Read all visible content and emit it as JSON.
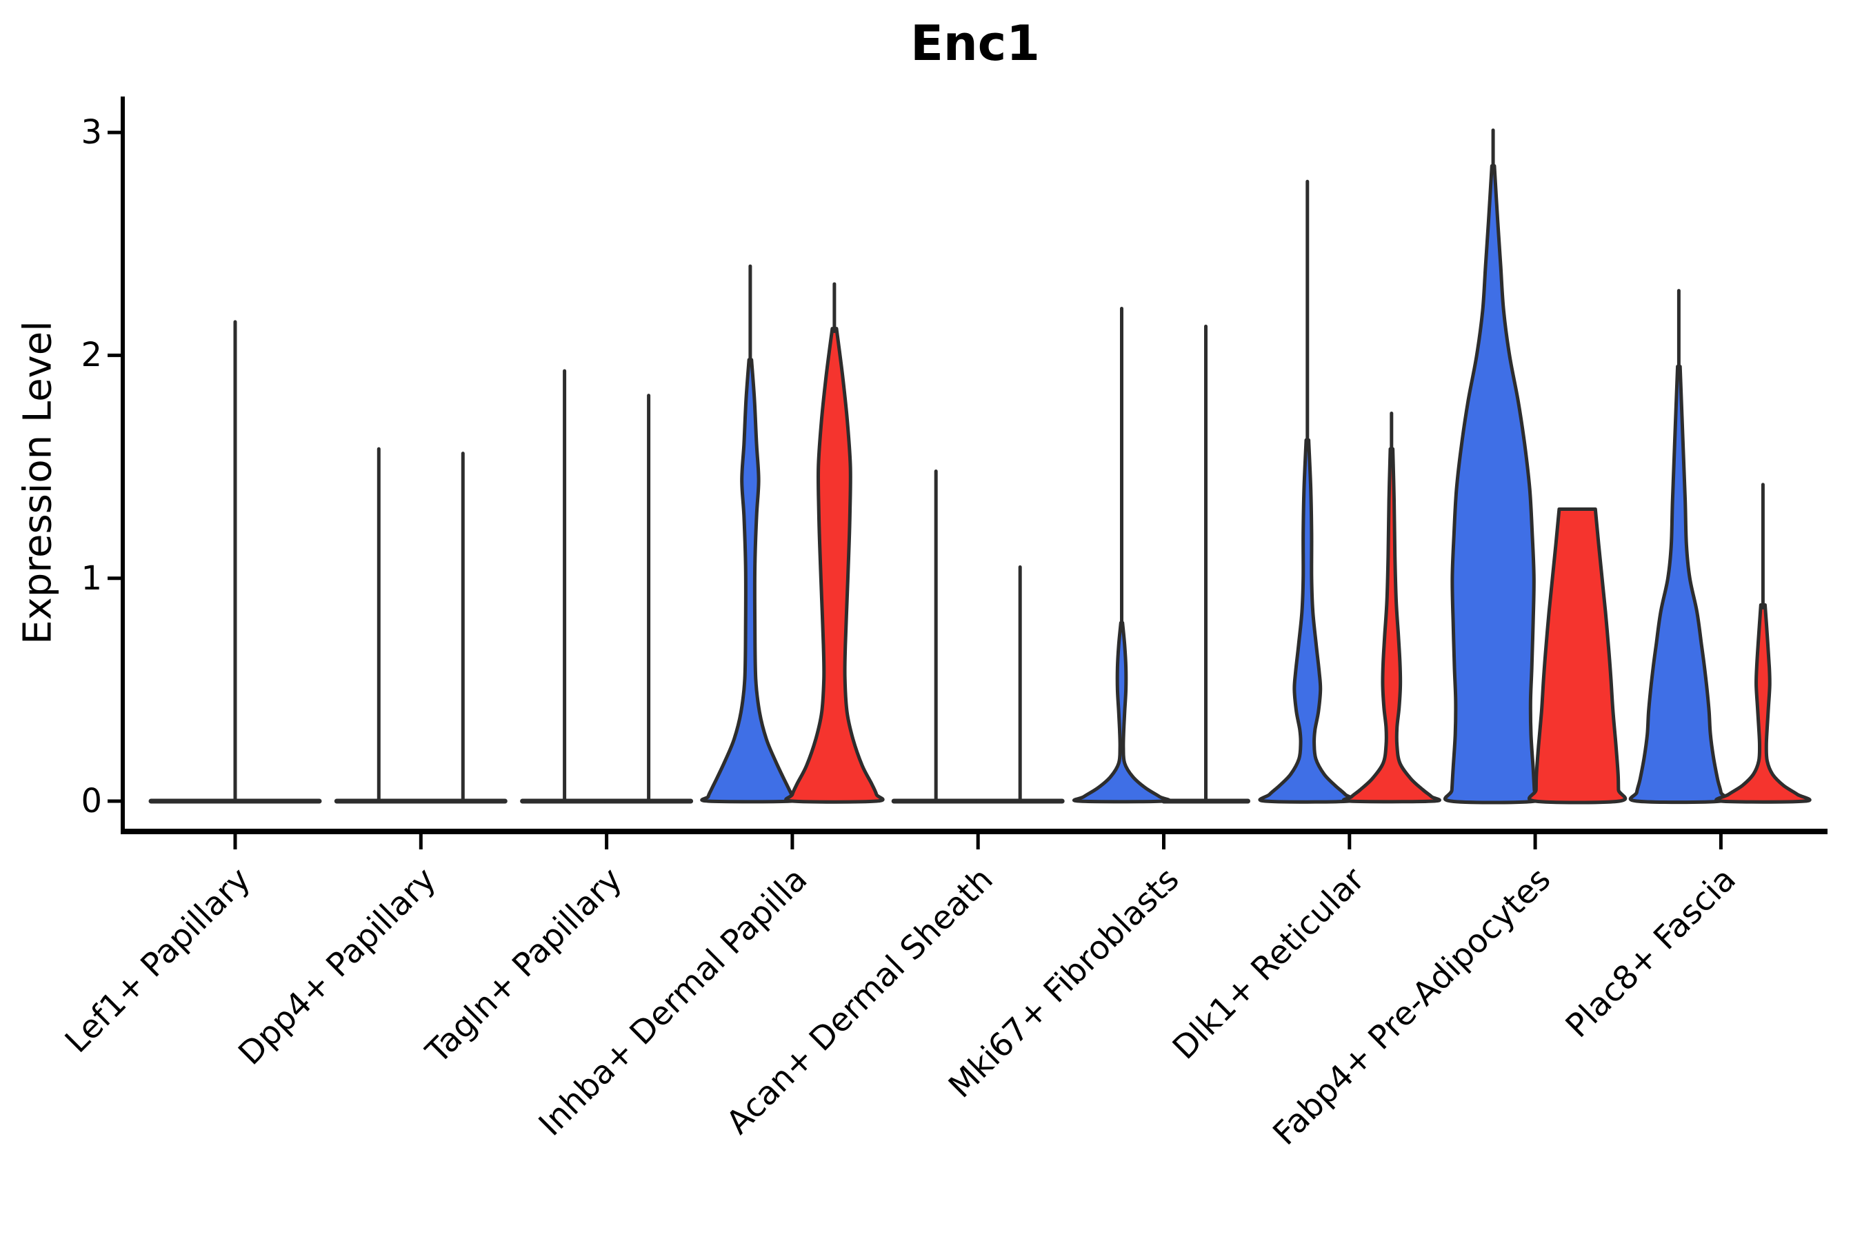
{
  "chart_data": {
    "type": "violin",
    "title": "Enc1",
    "ylabel": "Expression Level",
    "xlabel": "",
    "yticks": [
      0,
      1,
      2,
      3
    ],
    "ylim": [
      0,
      3.16
    ],
    "grid": false,
    "legend": "none",
    "split_colors": {
      "blue": "#3F6FE6",
      "red": "#F5342E"
    },
    "outline_color": "#2D2D2D",
    "axis_color": "#000000",
    "categories": [
      {
        "label": "Lef1+ Papillary",
        "violins": [
          {
            "pos": "center",
            "color": "blue",
            "flat": true,
            "spike": 2.15,
            "max_value": 2.15
          }
        ]
      },
      {
        "label": "Dpp4+ Papillary",
        "violins": [
          {
            "pos": "left",
            "color": "blue",
            "flat": true,
            "spike": 1.58,
            "max_value": 1.58
          },
          {
            "pos": "right",
            "color": "red",
            "flat": true,
            "spike": 1.56,
            "max_value": 1.56
          }
        ]
      },
      {
        "label": "Tagln+ Papillary",
        "violins": [
          {
            "pos": "left",
            "color": "blue",
            "flat": true,
            "spike": 1.93,
            "max_value": 1.93
          },
          {
            "pos": "right",
            "color": "red",
            "flat": true,
            "spike": 1.82,
            "max_value": 1.82
          }
        ]
      },
      {
        "label": "Inhba+ Dermal Papilla",
        "violins": [
          {
            "pos": "left",
            "color": "blue",
            "flat": false,
            "spike": 2.4,
            "max_value": 2.4,
            "profile": [
              [
                1.98,
                0.03
              ],
              [
                1.8,
                0.1
              ],
              [
                1.6,
                0.15
              ],
              [
                1.44,
                0.2
              ],
              [
                1.28,
                0.15
              ],
              [
                1.05,
                0.11
              ],
              [
                0.8,
                0.11
              ],
              [
                0.55,
                0.13
              ],
              [
                0.4,
                0.22
              ],
              [
                0.28,
                0.38
              ],
              [
                0.18,
                0.6
              ],
              [
                0.1,
                0.8
              ],
              [
                0.05,
                0.93
              ],
              [
                0.02,
                1.0
              ],
              [
                0,
                1.0
              ]
            ]
          },
          {
            "pos": "right",
            "color": "red",
            "flat": false,
            "spike": 2.32,
            "max_value": 2.32,
            "profile": [
              [
                2.12,
                0.05
              ],
              [
                1.9,
                0.2
              ],
              [
                1.7,
                0.31
              ],
              [
                1.5,
                0.38
              ],
              [
                1.3,
                0.37
              ],
              [
                1.1,
                0.34
              ],
              [
                0.9,
                0.3
              ],
              [
                0.7,
                0.26
              ],
              [
                0.55,
                0.25
              ],
              [
                0.4,
                0.3
              ],
              [
                0.28,
                0.44
              ],
              [
                0.16,
                0.66
              ],
              [
                0.08,
                0.88
              ],
              [
                0.03,
                1.0
              ],
              [
                0,
                1.0
              ]
            ]
          }
        ]
      },
      {
        "label": "Acan+ Dermal Sheath",
        "violins": [
          {
            "pos": "left",
            "color": "blue",
            "flat": true,
            "spike": 1.48,
            "max_value": 1.48
          },
          {
            "pos": "right",
            "color": "red",
            "flat": true,
            "spike": 1.05,
            "max_value": 1.05
          }
        ]
      },
      {
        "label": "Mki67+ Fibroblasts",
        "violins": [
          {
            "pos": "left",
            "color": "blue",
            "flat": false,
            "spike": 2.21,
            "max_value": 2.21,
            "profile": [
              [
                0.8,
                0.02
              ],
              [
                0.7,
                0.07
              ],
              [
                0.6,
                0.1
              ],
              [
                0.5,
                0.1
              ],
              [
                0.4,
                0.07
              ],
              [
                0.32,
                0.05
              ],
              [
                0.24,
                0.04
              ],
              [
                0.17,
                0.07
              ],
              [
                0.11,
                0.26
              ],
              [
                0.06,
                0.56
              ],
              [
                0.02,
                0.9
              ],
              [
                0,
                1.0
              ]
            ]
          },
          {
            "pos": "right",
            "color": "red",
            "flat": true,
            "spike": 2.13,
            "max_value": 2.13
          }
        ]
      },
      {
        "label": "Dlk1+ Reticular",
        "violins": [
          {
            "pos": "left",
            "color": "blue",
            "flat": false,
            "spike": 2.78,
            "max_value": 2.78,
            "profile": [
              [
                1.62,
                0.03
              ],
              [
                1.4,
                0.08
              ],
              [
                1.2,
                0.1
              ],
              [
                1.0,
                0.1
              ],
              [
                0.85,
                0.13
              ],
              [
                0.7,
                0.21
              ],
              [
                0.58,
                0.28
              ],
              [
                0.5,
                0.31
              ],
              [
                0.4,
                0.26
              ],
              [
                0.32,
                0.18
              ],
              [
                0.26,
                0.16
              ],
              [
                0.19,
                0.2
              ],
              [
                0.12,
                0.4
              ],
              [
                0.07,
                0.66
              ],
              [
                0.03,
                0.9
              ],
              [
                0,
                1.0
              ]
            ]
          },
          {
            "pos": "right",
            "color": "red",
            "flat": false,
            "spike": 1.74,
            "max_value": 1.74,
            "profile": [
              [
                1.58,
                0.03
              ],
              [
                1.35,
                0.06
              ],
              [
                1.1,
                0.08
              ],
              [
                0.9,
                0.11
              ],
              [
                0.75,
                0.16
              ],
              [
                0.62,
                0.2
              ],
              [
                0.52,
                0.21
              ],
              [
                0.42,
                0.18
              ],
              [
                0.33,
                0.13
              ],
              [
                0.25,
                0.13
              ],
              [
                0.17,
                0.2
              ],
              [
                0.1,
                0.46
              ],
              [
                0.05,
                0.75
              ],
              [
                0.02,
                0.95
              ],
              [
                0,
                1.0
              ]
            ]
          }
        ]
      },
      {
        "label": "Fabp4+ Pre-Adipocytes",
        "violins": [
          {
            "pos": "left",
            "color": "blue",
            "flat": false,
            "spike": 3.01,
            "max_value": 3.01,
            "profile": [
              [
                2.85,
                0.03
              ],
              [
                2.6,
                0.11
              ],
              [
                2.4,
                0.18
              ],
              [
                2.2,
                0.25
              ],
              [
                2.0,
                0.39
              ],
              [
                1.8,
                0.59
              ],
              [
                1.6,
                0.75
              ],
              [
                1.4,
                0.87
              ],
              [
                1.2,
                0.93
              ],
              [
                1.0,
                0.97
              ],
              [
                0.8,
                0.95
              ],
              [
                0.6,
                0.92
              ],
              [
                0.45,
                0.89
              ],
              [
                0.3,
                0.9
              ],
              [
                0.15,
                0.95
              ],
              [
                0.05,
                0.98
              ],
              [
                0,
                1.0
              ]
            ]
          },
          {
            "pos": "right",
            "color": "red",
            "flat": false,
            "spike": null,
            "max_value": 1.31,
            "profile": [
              [
                1.31,
                0.43
              ],
              [
                1.15,
                0.51
              ],
              [
                1.0,
                0.59
              ],
              [
                0.85,
                0.67
              ],
              [
                0.7,
                0.74
              ],
              [
                0.55,
                0.8
              ],
              [
                0.4,
                0.85
              ],
              [
                0.25,
                0.92
              ],
              [
                0.12,
                0.97
              ],
              [
                0.05,
                0.98
              ],
              [
                0,
                1.0
              ]
            ]
          }
        ]
      },
      {
        "label": "Plac8+ Fascia",
        "violins": [
          {
            "pos": "left",
            "color": "blue",
            "flat": false,
            "spike": 2.29,
            "max_value": 2.29,
            "profile": [
              [
                1.95,
                0.03
              ],
              [
                1.6,
                0.1
              ],
              [
                1.35,
                0.15
              ],
              [
                1.15,
                0.18
              ],
              [
                1.0,
                0.26
              ],
              [
                0.85,
                0.43
              ],
              [
                0.7,
                0.54
              ],
              [
                0.6,
                0.61
              ],
              [
                0.5,
                0.67
              ],
              [
                0.4,
                0.72
              ],
              [
                0.3,
                0.75
              ],
              [
                0.2,
                0.82
              ],
              [
                0.1,
                0.92
              ],
              [
                0.04,
                1.0
              ],
              [
                0,
                1.0
              ]
            ]
          },
          {
            "pos": "right",
            "color": "red",
            "flat": false,
            "spike": 1.42,
            "max_value": 1.42,
            "profile": [
              [
                0.88,
                0.05
              ],
              [
                0.72,
                0.11
              ],
              [
                0.6,
                0.15
              ],
              [
                0.52,
                0.16
              ],
              [
                0.42,
                0.13
              ],
              [
                0.33,
                0.1
              ],
              [
                0.25,
                0.08
              ],
              [
                0.18,
                0.1
              ],
              [
                0.12,
                0.23
              ],
              [
                0.07,
                0.49
              ],
              [
                0.03,
                0.82
              ],
              [
                0,
                1.0
              ]
            ]
          }
        ]
      }
    ]
  }
}
